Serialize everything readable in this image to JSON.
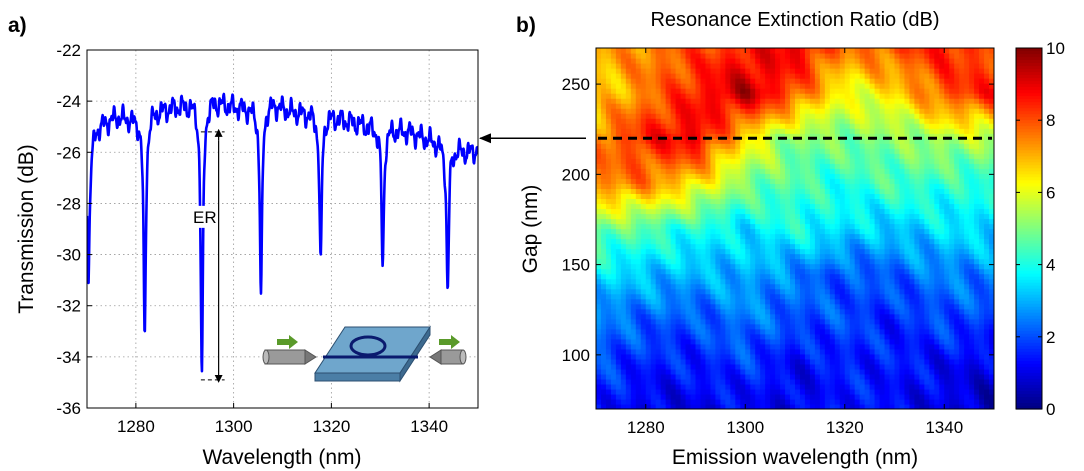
{
  "panel_a": {
    "label": "a)"
  },
  "panel_b": {
    "label": "b)"
  },
  "chart_data": [
    {
      "type": "line",
      "title": "",
      "xlabel": "Wavelength (nm)",
      "ylabel": "Transmission (dB)",
      "xlim": [
        1270,
        1350
      ],
      "ylim": [
        -36,
        -22
      ],
      "xticks": [
        1280,
        1300,
        1320,
        1340
      ],
      "yticks": [
        -22,
        -24,
        -26,
        -28,
        -30,
        -32,
        -34,
        -36
      ],
      "grid": true,
      "series_color": "#0000ff",
      "baseline": [
        [
          1270,
          -26.0
        ],
        [
          1272,
          -25.0
        ],
        [
          1276,
          -24.6
        ],
        [
          1280,
          -24.7
        ],
        [
          1284,
          -24.4
        ],
        [
          1288,
          -24.2
        ],
        [
          1292,
          -24.1
        ],
        [
          1296,
          -24.0
        ],
        [
          1300,
          -24.2
        ],
        [
          1304,
          -24.3
        ],
        [
          1308,
          -24.1
        ],
        [
          1312,
          -24.4
        ],
        [
          1316,
          -24.5
        ],
        [
          1320,
          -24.6
        ],
        [
          1324,
          -24.8
        ],
        [
          1328,
          -25.0
        ],
        [
          1332,
          -25.1
        ],
        [
          1336,
          -25.2
        ],
        [
          1340,
          -25.5
        ],
        [
          1344,
          -25.8
        ],
        [
          1348,
          -26.0
        ],
        [
          1350,
          -25.9
        ]
      ],
      "resonances": [
        {
          "x": 1270.3,
          "depth": -30.9
        },
        {
          "x": 1281.8,
          "depth": -33.3
        },
        {
          "x": 1293.5,
          "depth": -34.9
        },
        {
          "x": 1305.6,
          "depth": -31.7
        },
        {
          "x": 1317.8,
          "depth": -30.5
        },
        {
          "x": 1330.5,
          "depth": -30.6
        },
        {
          "x": 1343.8,
          "depth": -31.5
        }
      ],
      "annotation": {
        "text": "ER",
        "x": 1295.5,
        "y_top": -25.2,
        "y_bottom": -34.9
      }
    },
    {
      "type": "heatmap",
      "title": "Resonance Extinction Ratio (dB)",
      "xlabel": "Emission wavelength (nm)",
      "ylabel": "Gap (nm)",
      "xlim": [
        1270,
        1350
      ],
      "ylim": [
        70,
        270
      ],
      "xticks": [
        1280,
        1300,
        1320,
        1340
      ],
      "yticks": [
        100,
        150,
        200,
        250
      ],
      "colorbar": {
        "min": 0,
        "max": 10,
        "ticks": [
          0,
          2,
          4,
          6,
          8,
          10
        ]
      },
      "x": [
        1270,
        1280,
        1290,
        1300,
        1310,
        1320,
        1330,
        1340,
        1350
      ],
      "y": [
        70,
        95,
        120,
        145,
        170,
        195,
        220,
        245,
        270
      ],
      "z": [
        [
          1.5,
          1.0,
          1.0,
          1.2,
          1.0,
          1.5,
          1.2,
          1.0,
          0.5
        ],
        [
          2.0,
          1.5,
          1.5,
          1.8,
          1.2,
          1.5,
          1.5,
          1.2,
          1.0
        ],
        [
          2.5,
          2.2,
          2.0,
          2.5,
          2.0,
          2.0,
          1.5,
          2.0,
          1.8
        ],
        [
          3.5,
          3.2,
          3.0,
          3.0,
          2.5,
          2.0,
          2.2,
          2.5,
          2.5
        ],
        [
          5.0,
          4.5,
          4.0,
          3.5,
          4.0,
          3.5,
          3.2,
          3.5,
          3.5
        ],
        [
          7.5,
          7.5,
          6.5,
          5.0,
          4.5,
          4.0,
          4.5,
          4.2,
          4.0
        ],
        [
          7.5,
          8.5,
          9.0,
          6.5,
          5.0,
          5.0,
          5.0,
          5.5,
          5.5
        ],
        [
          6.5,
          7.5,
          8.5,
          9.5,
          8.0,
          6.0,
          6.5,
          8.0,
          8.5
        ],
        [
          7.0,
          7.5,
          8.0,
          8.5,
          9.0,
          7.5,
          8.0,
          8.5,
          8.0
        ]
      ],
      "dashed_line": {
        "gap": 220
      },
      "arrow": "from heatmap dashed line to panel a"
    }
  ]
}
